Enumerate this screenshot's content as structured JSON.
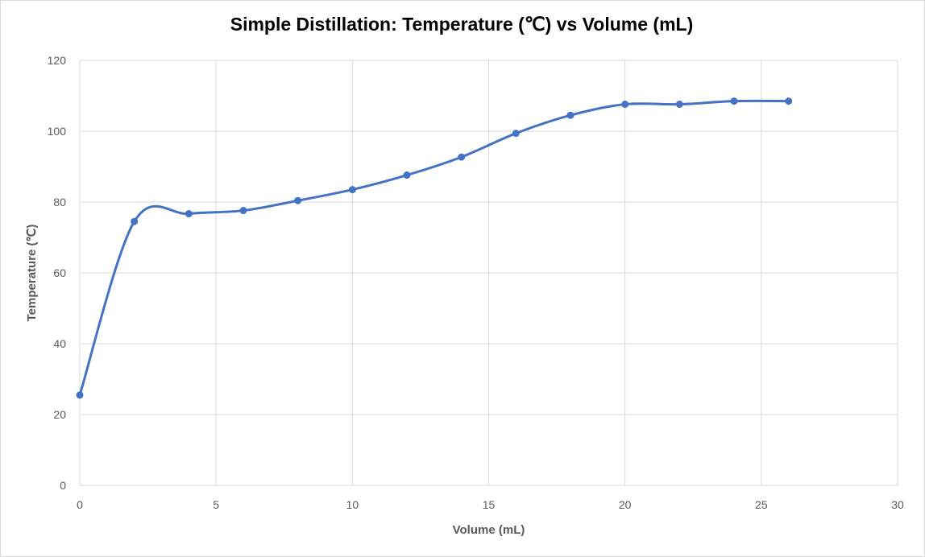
{
  "chart_data": {
    "type": "scatter",
    "title": "Simple Distillation: Temperature (℃) vs Volume (mL)",
    "xlabel": "Volume (mL)",
    "ylabel": "Temperature (℃)",
    "xlim": [
      0,
      30
    ],
    "ylim": [
      0,
      120
    ],
    "xticks": [
      0,
      5,
      10,
      15,
      20,
      25,
      30
    ],
    "yticks": [
      0,
      20,
      40,
      60,
      80,
      100,
      120
    ],
    "grid": true,
    "smooth_line": true,
    "series_color": "#4472c4",
    "gridline_color": "#d9d9d9",
    "series": [
      {
        "x": [
          0,
          2,
          4,
          6,
          8,
          10,
          12,
          14,
          16,
          18,
          20,
          22,
          24,
          26
        ],
        "y": [
          25.5,
          74.5,
          76.7,
          77.6,
          80.4,
          83.5,
          87.6,
          92.7,
          99.4,
          104.5,
          107.6,
          107.6,
          108.5,
          108.5
        ]
      }
    ]
  }
}
